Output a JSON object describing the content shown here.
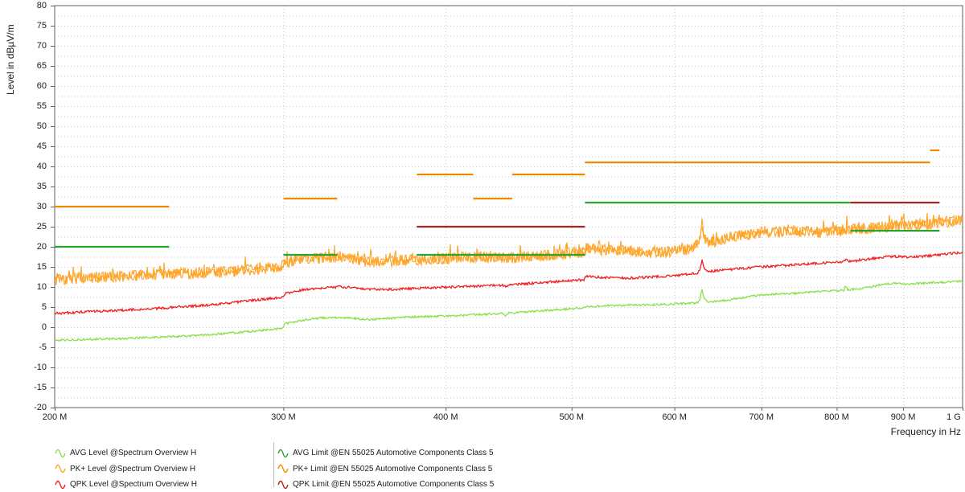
{
  "chart": {
    "y_axis": {
      "label": "Level in dBµV/m",
      "min": -20,
      "max": 80,
      "tick_step": 5,
      "ticks": [
        "80",
        "75",
        "70",
        "65",
        "60",
        "55",
        "50",
        "45",
        "40",
        "35",
        "30",
        "25",
        "20",
        "15",
        "10",
        "5",
        "0",
        "-5",
        "-10",
        "-15",
        "-20"
      ],
      "minor_grid_step": 2.5
    },
    "x_axis": {
      "label": "Frequency in Hz",
      "scale": "log",
      "min_mhz": 200,
      "max_mhz": 1000,
      "ticks": [
        {
          "mhz": 200,
          "label": "200 M"
        },
        {
          "mhz": 300,
          "label": "300 M"
        },
        {
          "mhz": 400,
          "label": "400 M"
        },
        {
          "mhz": 500,
          "label": "500 M"
        },
        {
          "mhz": 600,
          "label": "600 M"
        },
        {
          "mhz": 700,
          "label": "700 M"
        },
        {
          "mhz": 800,
          "label": "800 M"
        },
        {
          "mhz": 900,
          "label": "900 M"
        },
        {
          "mhz": 1000,
          "label": "1 G"
        }
      ]
    },
    "colors": {
      "grid": "#c8c8c8",
      "frame": "#5f5f5f",
      "avg_level": "#8be04a",
      "pk_level": "#ffa428",
      "qpk_level": "#f01e1e",
      "avg_limit": "#2da32d",
      "pk_limit": "#f28a00",
      "qpk_limit": "#a62424"
    },
    "chart_data": {
      "type": "line",
      "x_unit": "MHz",
      "y_unit": "dBµV/m",
      "series": [
        {
          "name": "AVG Level @Spectrum Overview H",
          "color_key": "avg_level",
          "noise_db": 0.25,
          "passes": 1,
          "width": 1.3,
          "points": [
            [
              200,
              -3.3
            ],
            [
              210,
              -3.1
            ],
            [
              222,
              -2.9
            ],
            [
              235,
              -2.6
            ],
            [
              248,
              -2.3
            ],
            [
              262,
              -1.9
            ],
            [
              275,
              -1.4
            ],
            [
              288,
              -0.8
            ],
            [
              299,
              -0.3
            ],
            [
              301,
              0.9
            ],
            [
              310,
              1.7
            ],
            [
              320,
              2.3
            ],
            [
              330,
              2.4
            ],
            [
              340,
              2.2
            ],
            [
              350,
              1.9
            ],
            [
              362,
              2.2
            ],
            [
              375,
              2.5
            ],
            [
              390,
              2.7
            ],
            [
              405,
              2.9
            ],
            [
              420,
              3.1
            ],
            [
              435,
              3.3
            ],
            [
              443,
              3.4
            ],
            [
              445,
              2.9
            ],
            [
              447,
              3.5
            ],
            [
              460,
              3.8
            ],
            [
              475,
              4.1
            ],
            [
              490,
              4.4
            ],
            [
              505,
              4.7
            ],
            [
              511,
              4.8
            ],
            [
              513,
              5.1
            ],
            [
              530,
              5.3
            ],
            [
              550,
              5.5
            ],
            [
              570,
              5.6
            ],
            [
              590,
              5.7
            ],
            [
              610,
              5.9
            ],
            [
              625,
              6.1
            ],
            [
              628,
              7.0
            ],
            [
              630,
              9.5
            ],
            [
              632,
              7.2
            ],
            [
              636,
              6.3
            ],
            [
              650,
              6.5
            ],
            [
              670,
              7.1
            ],
            [
              693,
              7.9
            ],
            [
              715,
              8.2
            ],
            [
              740,
              8.4
            ],
            [
              765,
              8.7
            ],
            [
              790,
              9.0
            ],
            [
              810,
              9.2
            ],
            [
              813,
              10.3
            ],
            [
              816,
              9.3
            ],
            [
              830,
              9.5
            ],
            [
              850,
              10.0
            ],
            [
              871,
              10.8
            ],
            [
              890,
              10.9
            ],
            [
              910,
              10.7
            ],
            [
              930,
              10.9
            ],
            [
              950,
              11.1
            ],
            [
              970,
              11.2
            ],
            [
              985,
              11.3
            ],
            [
              1000,
              11.5
            ]
          ]
        },
        {
          "name": "PK+ Level @Spectrum Overview H",
          "color_key": "pk_level",
          "noise_db": 1.4,
          "passes": 2,
          "width": 1.1,
          "spikes": true,
          "points": [
            [
              200,
              11.9
            ],
            [
              210,
              12.2
            ],
            [
              220,
              12.6
            ],
            [
              232,
              12.9
            ],
            [
              245,
              13.3
            ],
            [
              258,
              13.4
            ],
            [
              270,
              13.8
            ],
            [
              285,
              14.3
            ],
            [
              299,
              15.0
            ],
            [
              301,
              16.2
            ],
            [
              310,
              16.8
            ],
            [
              320,
              17.2
            ],
            [
              330,
              17.5
            ],
            [
              338,
              17.2
            ],
            [
              345,
              16.4
            ],
            [
              352,
              16.1
            ],
            [
              365,
              16.5
            ],
            [
              380,
              16.8
            ],
            [
              400,
              17.1
            ],
            [
              412,
              17.3
            ],
            [
              425,
              17.5
            ],
            [
              437,
              17.4
            ],
            [
              450,
              17.3
            ],
            [
              465,
              17.6
            ],
            [
              480,
              17.9
            ],
            [
              495,
              18.3
            ],
            [
              511,
              18.6
            ],
            [
              513,
              19.6
            ],
            [
              525,
              19.3
            ],
            [
              540,
              19.1
            ],
            [
              555,
              18.9
            ],
            [
              570,
              18.7
            ],
            [
              585,
              18.6
            ],
            [
              600,
              18.9
            ],
            [
              615,
              19.4
            ],
            [
              622,
              20.0
            ],
            [
              628,
              22.0
            ],
            [
              630,
              26.3
            ],
            [
              632,
              22.5
            ],
            [
              636,
              21.0
            ],
            [
              645,
              21.3
            ],
            [
              660,
              22.2
            ],
            [
              675,
              22.8
            ],
            [
              693,
              23.2
            ],
            [
              710,
              23.5
            ],
            [
              730,
              23.7
            ],
            [
              750,
              23.8
            ],
            [
              770,
              23.6
            ],
            [
              790,
              23.9
            ],
            [
              810,
              24.2
            ],
            [
              815,
              24.6
            ],
            [
              820,
              24.3
            ],
            [
              840,
              24.6
            ],
            [
              860,
              24.9
            ],
            [
              880,
              25.1
            ],
            [
              900,
              25.2
            ],
            [
              920,
              25.4
            ],
            [
              940,
              25.6
            ],
            [
              955,
              25.9
            ],
            [
              970,
              26.2
            ],
            [
              985,
              26.5
            ],
            [
              1000,
              26.7
            ]
          ]
        },
        {
          "name": "QPK Level @Spectrum Overview H",
          "color_key": "qpk_level",
          "noise_db": 0.3,
          "passes": 1,
          "width": 1.3,
          "points": [
            [
              200,
              3.4
            ],
            [
              210,
              3.8
            ],
            [
              222,
              4.1
            ],
            [
              235,
              4.5
            ],
            [
              248,
              5.0
            ],
            [
              262,
              5.5
            ],
            [
              275,
              6.2
            ],
            [
              288,
              6.9
            ],
            [
              299,
              7.4
            ],
            [
              301,
              8.4
            ],
            [
              310,
              9.2
            ],
            [
              320,
              9.7
            ],
            [
              330,
              10.0
            ],
            [
              340,
              9.9
            ],
            [
              350,
              9.4
            ],
            [
              362,
              9.4
            ],
            [
              375,
              9.6
            ],
            [
              390,
              9.8
            ],
            [
              405,
              10.0
            ],
            [
              420,
              10.2
            ],
            [
              435,
              10.4
            ],
            [
              443,
              10.5
            ],
            [
              445,
              9.9
            ],
            [
              447,
              10.5
            ],
            [
              460,
              10.8
            ],
            [
              475,
              11.1
            ],
            [
              490,
              11.4
            ],
            [
              505,
              11.7
            ],
            [
              511,
              11.8
            ],
            [
              513,
              12.6
            ],
            [
              530,
              12.4
            ],
            [
              550,
              12.2
            ],
            [
              570,
              12.4
            ],
            [
              590,
              12.7
            ],
            [
              610,
              13.1
            ],
            [
              625,
              13.5
            ],
            [
              628,
              14.5
            ],
            [
              630,
              16.9
            ],
            [
              632,
              14.6
            ],
            [
              636,
              13.9
            ],
            [
              650,
              14.1
            ],
            [
              670,
              14.5
            ],
            [
              693,
              14.9
            ],
            [
              715,
              15.2
            ],
            [
              740,
              15.5
            ],
            [
              765,
              15.8
            ],
            [
              790,
              16.1
            ],
            [
              810,
              16.3
            ],
            [
              813,
              17.0
            ],
            [
              816,
              16.4
            ],
            [
              830,
              16.6
            ],
            [
              850,
              17.0
            ],
            [
              871,
              17.5
            ],
            [
              890,
              17.6
            ],
            [
              910,
              17.4
            ],
            [
              930,
              17.6
            ],
            [
              950,
              17.9
            ],
            [
              970,
              18.2
            ],
            [
              985,
              18.4
            ],
            [
              1000,
              18.7
            ]
          ]
        }
      ],
      "limit_lines": [
        {
          "name": "AVG Limit @EN 55025 Automotive Components Class 5",
          "color_key": "avg_limit",
          "segments": [
            [
              200,
              245,
              20
            ],
            [
              300,
              330,
              18
            ],
            [
              380,
              512,
              18
            ],
            [
              512,
              820,
              31
            ],
            [
              820,
              960,
              24
            ]
          ]
        },
        {
          "name": "PK+ Limit @EN 55025 Automotive Components Class 5",
          "color_key": "pk_limit",
          "segments": [
            [
              200,
              245,
              30
            ],
            [
              300,
              330,
              32
            ],
            [
              380,
              420,
              38
            ],
            [
              420,
              450,
              32
            ],
            [
              450,
              512,
              38
            ],
            [
              512,
              944,
              41
            ],
            [
              944,
              960,
              44
            ]
          ]
        },
        {
          "name": "QPK Limit @EN 55025 Automotive Components Class 5",
          "color_key": "qpk_limit",
          "segments": [
            [
              380,
              512,
              25
            ],
            [
              820,
              960,
              31
            ]
          ]
        }
      ]
    }
  },
  "legend": {
    "columns": [
      {
        "x": 68,
        "items": [
          {
            "label": "AVG Level @Spectrum Overview H",
            "color_key": "avg_level"
          },
          {
            "label": "PK+ Level @Spectrum Overview H",
            "color_key": "pk_level"
          },
          {
            "label": "QPK Level @Spectrum Overview H",
            "color_key": "qpk_level"
          }
        ]
      },
      {
        "x": 345,
        "items": [
          {
            "label": "AVG Limit @EN 55025 Automotive Components Class 5",
            "color_key": "avg_limit"
          },
          {
            "label": "PK+ Limit @EN 55025 Automotive Components Class 5",
            "color_key": "pk_limit"
          },
          {
            "label": "QPK Limit @EN 55025 Automotive Components Class 5",
            "color_key": "qpk_limit"
          }
        ]
      }
    ]
  }
}
